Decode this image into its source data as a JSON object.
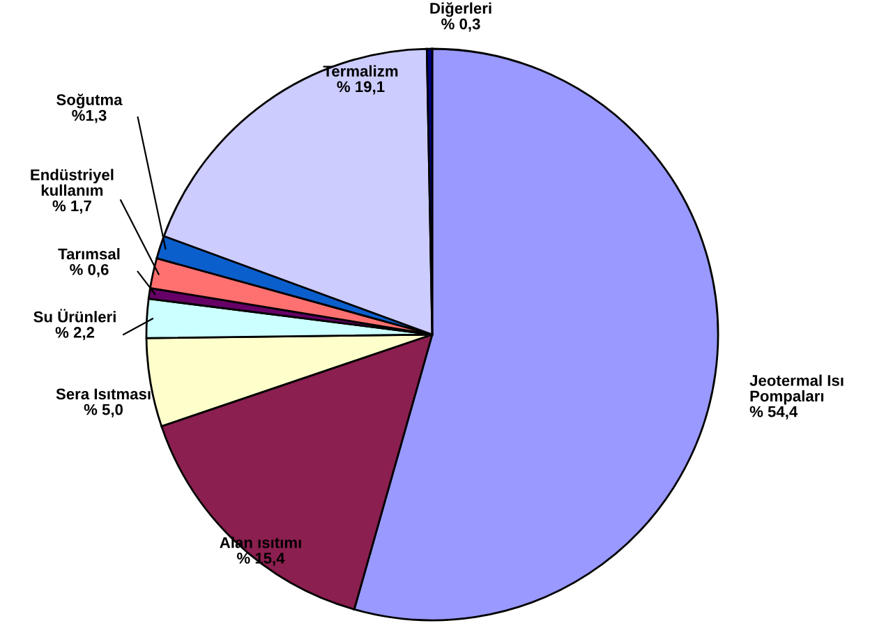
{
  "chart_data": {
    "type": "pie",
    "categories": [
      "Jeotermal Isı\nPompaları",
      "Alan ısıtımı",
      "Sera Isıtması",
      "Su Ürünleri",
      "Tarımsal",
      "Endüstriyel\nkullanım",
      "Soğutma",
      "Termalizm",
      "Diğerleri"
    ],
    "values": [
      54.4,
      15.4,
      5.0,
      2.2,
      0.6,
      1.7,
      1.3,
      19.1,
      0.3
    ],
    "value_labels": [
      "% 54,4",
      "% 15,4",
      "% 5,0",
      "% 2,2",
      "% 0,6",
      "% 1,7",
      "%1,3",
      "% 19,1",
      "% 0,3"
    ],
    "colors": [
      "#9999ff",
      "#8b1f4f",
      "#ffffcc",
      "#ccffff",
      "#660066",
      "#ff7070",
      "#0b5fcc",
      "#ccccff",
      "#000080"
    ]
  }
}
